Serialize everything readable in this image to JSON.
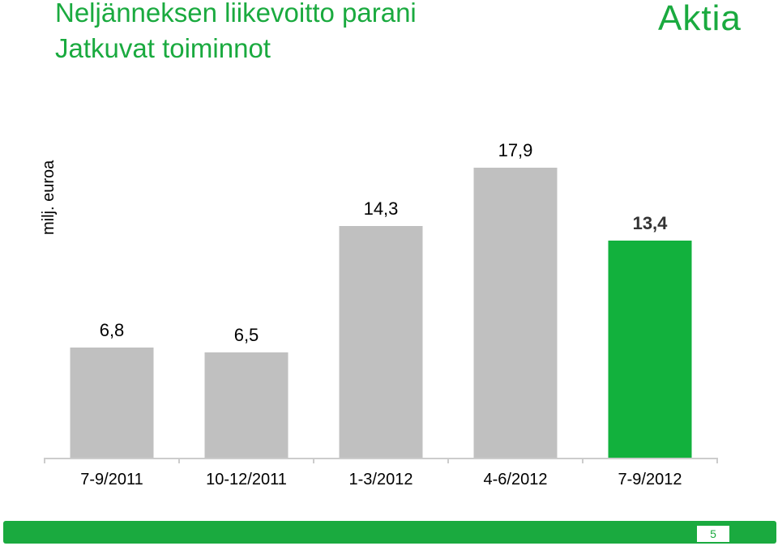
{
  "slide": {
    "title": "Neljänneksen liikevoitto parani",
    "subtitle": "Jatkuvat toiminnot",
    "logo_text": "Aktia",
    "page_number": "5"
  },
  "colors": {
    "brand": "#1aaa3f",
    "bar_default": "#c0c0c0",
    "bar_highlight": "#12b13d",
    "axis": "#cccccc",
    "page_number_bg": "#ffffff",
    "page_number_text": "#1aaa3f"
  },
  "chart_data": {
    "type": "bar",
    "title": "",
    "xlabel": "",
    "ylabel": "milj. euroa",
    "categories": [
      "7-9/2011",
      "10-12/2011",
      "1-3/2012",
      "4-6/2012",
      "7-9/2012"
    ],
    "values": [
      6.8,
      6.5,
      14.3,
      17.9,
      13.4
    ],
    "value_labels": [
      "6,8",
      "6,5",
      "14,3",
      "17,9",
      "13,4"
    ],
    "highlight_index": 4,
    "ylim": [
      0,
      20
    ],
    "grid": false,
    "legend": "none"
  }
}
